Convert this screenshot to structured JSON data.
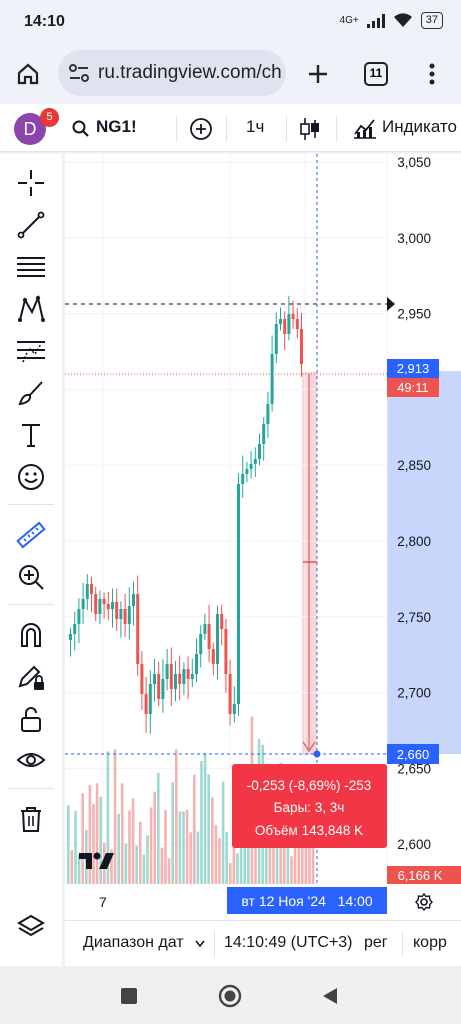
{
  "status_bar": {
    "time": "14:10",
    "network": "4G+",
    "battery": "37"
  },
  "browser": {
    "url": "ru.tradingview.com/ch",
    "tab_count": "11"
  },
  "toolbar": {
    "avatar_letter": "D",
    "notifications": "5",
    "symbol": "NG1!",
    "interval": "1ч",
    "indicators_label": "Индикато"
  },
  "price_axis": {
    "ticks": [
      "3,050",
      "3,000",
      "2,950",
      "2,900",
      "2,850",
      "2,800",
      "2,750",
      "2,700",
      "2,650",
      "2,600"
    ],
    "current_price": "2,913",
    "countdown": "49:11",
    "measure_price": "2,660",
    "volume_label": "6,166 K"
  },
  "measure_tooltip": {
    "change": "-0,253 (-8,69%) -253",
    "bars": "Бары: 3, 3ч",
    "volume": "Объём 143,848 K"
  },
  "time_axis": {
    "left_label": "7",
    "partial_label": "1",
    "crosshair_time": "вт 12 Ноя '24   14:00"
  },
  "bottom_bar": {
    "range_label": "Диапазон дат",
    "clock": "14:10:49 (UTC+3)",
    "session": "рег",
    "adjust": "корр"
  },
  "colors": {
    "up": "#26a69a",
    "down": "#ef5350",
    "accent": "#2962ff",
    "measure_zone": "#c9d6fb",
    "tooltip_bg": "#f23645"
  }
}
